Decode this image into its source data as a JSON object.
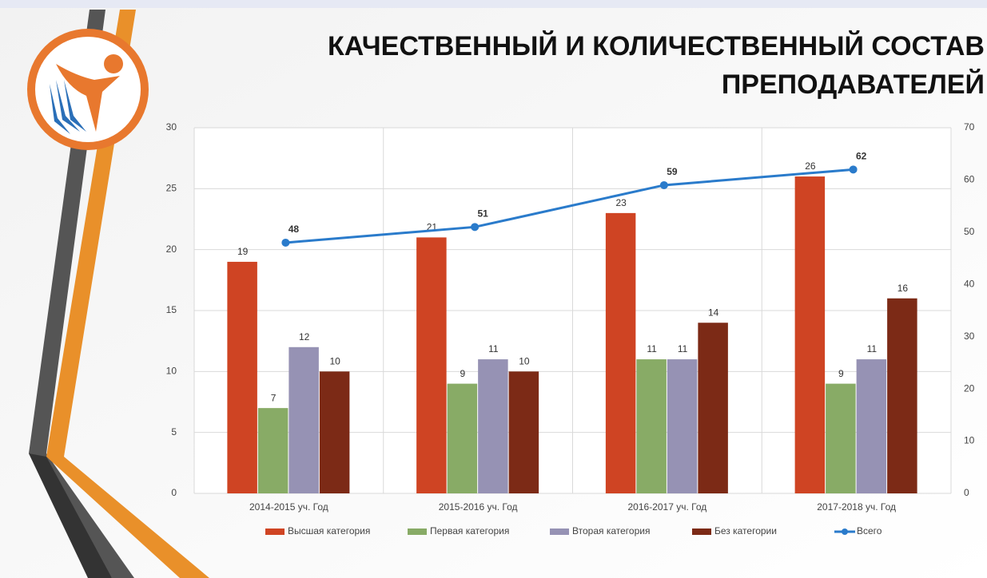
{
  "chart_data": {
    "type": "bar",
    "title": [
      "КАЧЕСТВЕННЫЙ  И КОЛИЧЕСТВЕННЫЙ  СОСТАВ",
      "ПРЕПОДАВАТЕЛЕЙ"
    ],
    "categories": [
      "2014-2015  уч.  Год",
      "2015-2016  уч.  Год",
      "2016-2017  уч.  Год",
      "2017-2018  уч.  Год"
    ],
    "series": [
      {
        "name": "Высшая категория",
        "color": "#cf4423",
        "values": [
          19,
          21,
          23,
          26
        ]
      },
      {
        "name": "Первая категория",
        "color": "#88ab66",
        "values": [
          7,
          9,
          11,
          9
        ]
      },
      {
        "name": "Вторая категория",
        "color": "#9692b4",
        "values": [
          12,
          11,
          11,
          11
        ]
      },
      {
        "name": "Без категории",
        "color": "#7c2a16",
        "values": [
          10,
          10,
          14,
          16
        ]
      },
      {
        "name": "Всего",
        "color": "#2a7bcb",
        "type": "line",
        "axis": "y2",
        "values": [
          48,
          51,
          59,
          62
        ]
      }
    ],
    "ylim": [
      0,
      30
    ],
    "yticks": [
      0,
      5,
      10,
      15,
      20,
      25,
      30
    ],
    "y2lim": [
      0,
      70
    ],
    "y2ticks": [
      0,
      10,
      20,
      30,
      40,
      50,
      60,
      70
    ],
    "grid": true,
    "legend": "bottom"
  }
}
